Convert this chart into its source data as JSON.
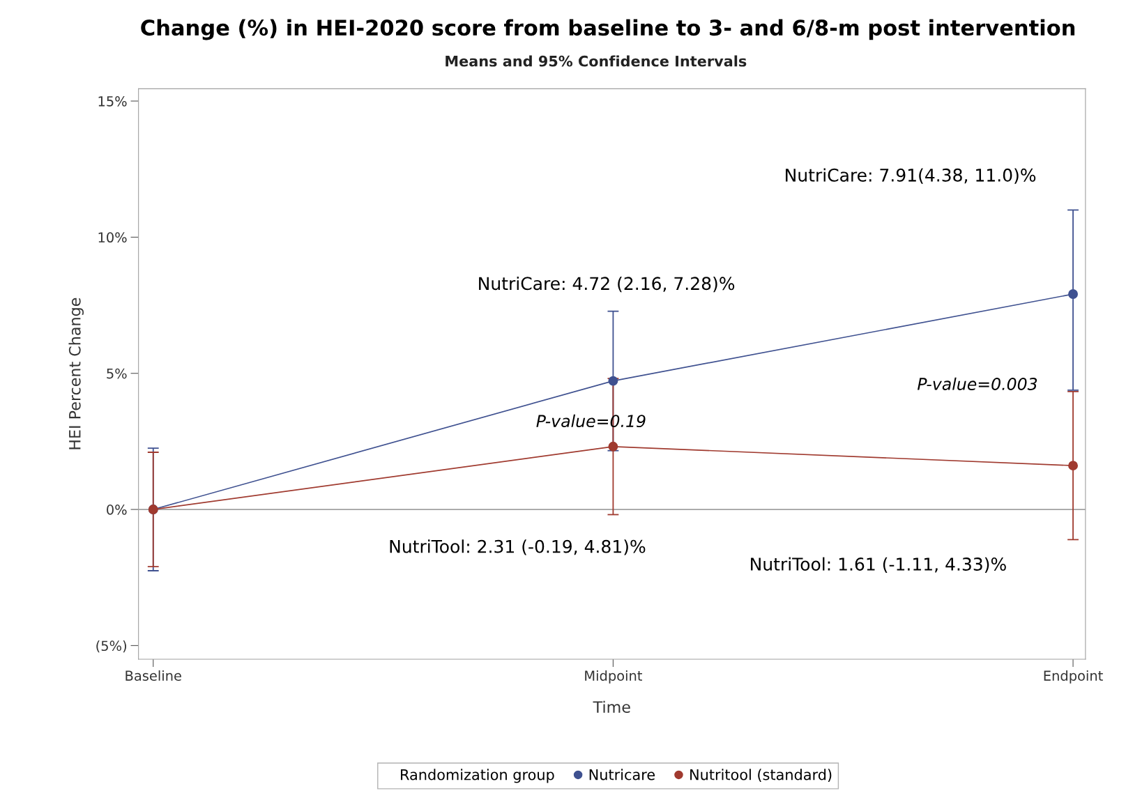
{
  "chart_data": {
    "type": "line",
    "title": "Change (%) in HEI-2020 score from baseline to 3- and 6/8-m post intervention",
    "subtitle": "Means and 95% Confidence Intervals",
    "xlabel": "Time",
    "ylabel": "HEI Percent Change",
    "legend_title": "Randomization group",
    "categories": [
      "Baseline",
      "Midpoint",
      "Endpoint"
    ],
    "series": [
      {
        "name": "Nutricare",
        "color": "#3f5190",
        "values": [
          0,
          4.72,
          7.91
        ],
        "errors": [
          [
            -2.25,
            2.25
          ],
          [
            2.16,
            7.28
          ],
          [
            4.38,
            11.0
          ]
        ]
      },
      {
        "name": "Nutritool (standard)",
        "color": "#a03a2f",
        "values": [
          0,
          2.31,
          1.61
        ],
        "errors": [
          [
            -2.1,
            2.1
          ],
          [
            -0.19,
            4.81
          ],
          [
            -1.11,
            4.33
          ]
        ]
      }
    ],
    "ylim": [
      -5.5,
      15.45
    ],
    "yticks": [
      {
        "value": -5,
        "label": "(5%)"
      },
      {
        "value": 0,
        "label": "0%"
      },
      {
        "value": 5,
        "label": "5%"
      },
      {
        "value": 10,
        "label": "10%"
      },
      {
        "value": 15,
        "label": "15%"
      }
    ],
    "ref_lines": [
      {
        "axis": "y",
        "value": 0,
        "color": "#a0a0a0"
      }
    ],
    "marker": "circle",
    "line_style": "solid",
    "grid": false,
    "legend": "bottom",
    "annotations": [
      "NutriCare: 4.72 (2.16, 7.28)%",
      "NutriCare: 7.91(4.38, 11.0)%",
      "NutriTool: 2.31 (-0.19, 4.81)%",
      "NutriTool: 1.61 (-1.11, 4.33)%",
      "P-value=0.19",
      "P-value=0.003"
    ]
  }
}
